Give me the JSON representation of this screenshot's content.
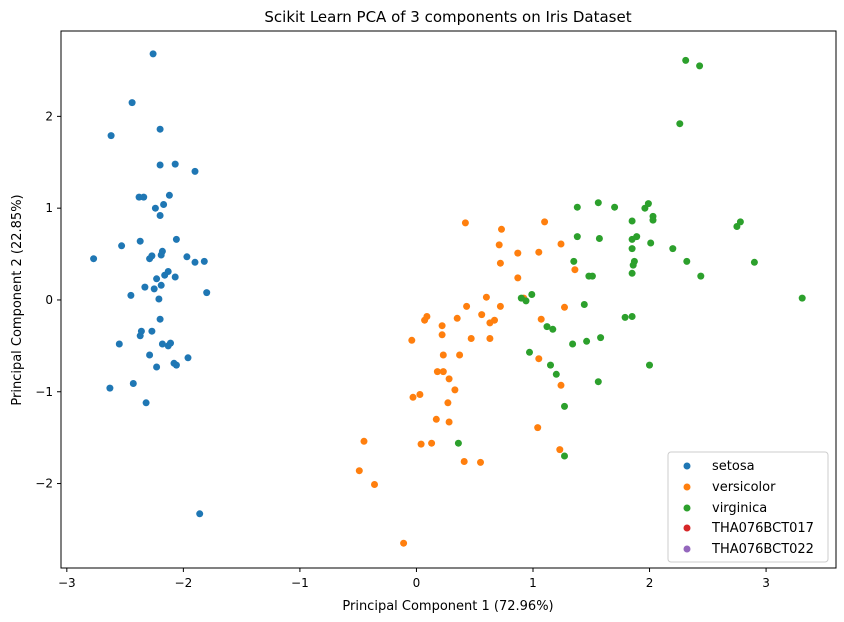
{
  "chart_data": {
    "type": "scatter",
    "title": "Scikit Learn PCA of 3 components on Iris Dataset",
    "xlabel": "Principal Component 1 (72.96%)",
    "ylabel": "Principal Component 2 (22.85%)",
    "xlim": [
      -3.05,
      3.6
    ],
    "ylim": [
      -2.92,
      2.93
    ],
    "xticks": [
      -3,
      -2,
      -1,
      0,
      1,
      2,
      3
    ],
    "yticks": [
      -2,
      -1,
      0,
      1,
      2
    ],
    "grid": false,
    "legend_position": "bottom-right",
    "series": [
      {
        "name": "setosa",
        "color": "#1f77b4",
        "points": [
          [
            -2.26,
            2.68
          ],
          [
            -2.44,
            2.15
          ],
          [
            -2.62,
            1.79
          ],
          [
            -2.2,
            1.86
          ],
          [
            -2.2,
            1.47
          ],
          [
            -2.07,
            1.48
          ],
          [
            -1.9,
            1.4
          ],
          [
            -2.38,
            1.12
          ],
          [
            -2.34,
            1.12
          ],
          [
            -2.12,
            1.14
          ],
          [
            -2.17,
            1.04
          ],
          [
            -2.24,
            1.0
          ],
          [
            -2.2,
            0.92
          ],
          [
            -2.06,
            0.66
          ],
          [
            -2.37,
            0.64
          ],
          [
            -2.53,
            0.59
          ],
          [
            -2.18,
            0.53
          ],
          [
            -2.19,
            0.49
          ],
          [
            -2.27,
            0.48
          ],
          [
            -2.29,
            0.45
          ],
          [
            -1.97,
            0.47
          ],
          [
            -1.9,
            0.41
          ],
          [
            -1.82,
            0.42
          ],
          [
            -2.77,
            0.45
          ],
          [
            -2.13,
            0.31
          ],
          [
            -2.16,
            0.27
          ],
          [
            -2.23,
            0.23
          ],
          [
            -2.07,
            0.25
          ],
          [
            -2.19,
            0.16
          ],
          [
            -2.25,
            0.12
          ],
          [
            -2.33,
            0.14
          ],
          [
            -2.45,
            0.05
          ],
          [
            -2.21,
            0.01
          ],
          [
            -1.8,
            0.08
          ],
          [
            -2.2,
            -0.21
          ],
          [
            -2.36,
            -0.34
          ],
          [
            -2.27,
            -0.34
          ],
          [
            -2.37,
            -0.39
          ],
          [
            -2.18,
            -0.48
          ],
          [
            -2.13,
            -0.5
          ],
          [
            -2.11,
            -0.47
          ],
          [
            -2.55,
            -0.48
          ],
          [
            -1.96,
            -0.63
          ],
          [
            -2.29,
            -0.6
          ],
          [
            -2.08,
            -0.69
          ],
          [
            -2.06,
            -0.71
          ],
          [
            -2.23,
            -0.73
          ],
          [
            -2.43,
            -0.91
          ],
          [
            -2.63,
            -0.96
          ],
          [
            -2.32,
            -1.12
          ],
          [
            -1.86,
            -2.33
          ]
        ]
      },
      {
        "name": "versicolor",
        "color": "#ff7f0e",
        "points": [
          [
            0.42,
            0.84
          ],
          [
            1.1,
            0.85
          ],
          [
            0.73,
            0.77
          ],
          [
            1.24,
            0.61
          ],
          [
            0.71,
            0.6
          ],
          [
            1.05,
            0.52
          ],
          [
            0.87,
            0.51
          ],
          [
            0.72,
            0.4
          ],
          [
            1.36,
            0.33
          ],
          [
            0.87,
            0.24
          ],
          [
            0.92,
            0.02
          ],
          [
            0.6,
            0.03
          ],
          [
            0.43,
            -0.07
          ],
          [
            0.72,
            -0.07
          ],
          [
            1.27,
            -0.08
          ],
          [
            0.56,
            -0.16
          ],
          [
            0.09,
            -0.18
          ],
          [
            0.07,
            -0.22
          ],
          [
            0.35,
            -0.2
          ],
          [
            0.67,
            -0.22
          ],
          [
            1.07,
            -0.21
          ],
          [
            0.63,
            -0.25
          ],
          [
            0.22,
            -0.28
          ],
          [
            0.22,
            -0.38
          ],
          [
            -0.04,
            -0.44
          ],
          [
            0.47,
            -0.42
          ],
          [
            0.63,
            -0.42
          ],
          [
            0.37,
            -0.6
          ],
          [
            0.23,
            -0.6
          ],
          [
            1.05,
            -0.64
          ],
          [
            0.18,
            -0.78
          ],
          [
            0.23,
            -0.78
          ],
          [
            0.28,
            -0.86
          ],
          [
            1.24,
            -0.93
          ],
          [
            0.33,
            -0.98
          ],
          [
            0.03,
            -1.03
          ],
          [
            -0.03,
            -1.06
          ],
          [
            0.27,
            -1.12
          ],
          [
            0.17,
            -1.3
          ],
          [
            0.28,
            -1.33
          ],
          [
            1.04,
            -1.39
          ],
          [
            -0.45,
            -1.54
          ],
          [
            0.13,
            -1.56
          ],
          [
            0.04,
            -1.57
          ],
          [
            1.23,
            -1.63
          ],
          [
            0.41,
            -1.76
          ],
          [
            0.55,
            -1.77
          ],
          [
            -0.49,
            -1.86
          ],
          [
            -0.36,
            -2.01
          ],
          [
            -0.11,
            -2.65
          ]
        ]
      },
      {
        "name": "virginica",
        "color": "#2ca02c",
        "points": [
          [
            2.31,
            2.61
          ],
          [
            2.43,
            2.55
          ],
          [
            2.26,
            1.92
          ],
          [
            1.56,
            1.06
          ],
          [
            1.99,
            1.05
          ],
          [
            1.7,
            1.01
          ],
          [
            1.38,
            1.01
          ],
          [
            1.96,
            1.0
          ],
          [
            2.03,
            0.91
          ],
          [
            2.03,
            0.87
          ],
          [
            1.85,
            0.86
          ],
          [
            2.78,
            0.85
          ],
          [
            2.75,
            0.8
          ],
          [
            1.38,
            0.69
          ],
          [
            1.89,
            0.69
          ],
          [
            1.57,
            0.67
          ],
          [
            1.85,
            0.66
          ],
          [
            2.01,
            0.62
          ],
          [
            2.2,
            0.56
          ],
          [
            1.85,
            0.56
          ],
          [
            1.35,
            0.42
          ],
          [
            1.87,
            0.42
          ],
          [
            2.32,
            0.42
          ],
          [
            2.9,
            0.41
          ],
          [
            1.86,
            0.38
          ],
          [
            1.85,
            0.29
          ],
          [
            1.51,
            0.26
          ],
          [
            1.48,
            0.26
          ],
          [
            2.44,
            0.26
          ],
          [
            0.9,
            0.02
          ],
          [
            3.31,
            0.02
          ],
          [
            0.99,
            0.06
          ],
          [
            0.94,
            -0.01
          ],
          [
            1.44,
            -0.05
          ],
          [
            1.79,
            -0.19
          ],
          [
            1.85,
            -0.18
          ],
          [
            1.12,
            -0.29
          ],
          [
            1.17,
            -0.32
          ],
          [
            1.58,
            -0.41
          ],
          [
            1.46,
            -0.45
          ],
          [
            1.34,
            -0.48
          ],
          [
            0.97,
            -0.57
          ],
          [
            1.15,
            -0.71
          ],
          [
            2.0,
            -0.71
          ],
          [
            1.2,
            -0.81
          ],
          [
            1.56,
            -0.89
          ],
          [
            1.27,
            -1.16
          ],
          [
            0.36,
            -1.56
          ],
          [
            1.27,
            -1.7
          ]
        ]
      },
      {
        "name": "THA076BCT017",
        "color": "#d62728",
        "points": []
      },
      {
        "name": "THA076BCT022",
        "color": "#9467bd",
        "points": []
      }
    ]
  }
}
